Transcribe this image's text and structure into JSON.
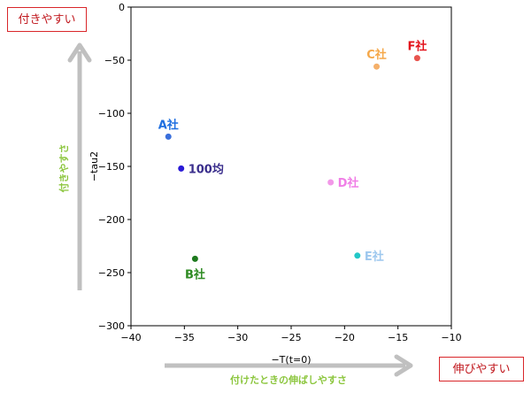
{
  "chart_data": {
    "type": "scatter",
    "xlabel": "−T(t=0)",
    "ylabel": "−tau2",
    "xlim": [
      -40,
      -10
    ],
    "ylim": [
      -300,
      0
    ],
    "xticks": [
      -40,
      -35,
      -30,
      -25,
      -20,
      -15,
      -10
    ],
    "yticks": [
      0,
      -50,
      -100,
      -150,
      -200,
      -250,
      -300
    ],
    "xtick_labels": [
      "−40",
      "−35",
      "−30",
      "−25",
      "−20",
      "−15",
      "−10"
    ],
    "ytick_labels": [
      "0",
      "−50",
      "−100",
      "−150",
      "−200",
      "−250",
      "−300"
    ],
    "grid": false,
    "points": [
      {
        "label": "A社",
        "x": -36.5,
        "y": -122,
        "color": "#3a6fdc",
        "label_color": "#1f6fe0",
        "label_pos": "above"
      },
      {
        "label": "100均",
        "x": -35.3,
        "y": -152,
        "color": "#2a1ad6",
        "label_color": "#3a2e8c",
        "label_pos": "right"
      },
      {
        "label": "B社",
        "x": -34.0,
        "y": -237,
        "color": "#1e7a1e",
        "label_color": "#2e8b22",
        "label_pos": "below"
      },
      {
        "label": "C社",
        "x": -17.0,
        "y": -56,
        "color": "#f5b06a",
        "label_color": "#f5a84a",
        "label_pos": "above"
      },
      {
        "label": "D社",
        "x": -21.3,
        "y": -165,
        "color": "#f298e8",
        "label_color": "#f07ee6",
        "label_pos": "right"
      },
      {
        "label": "E社",
        "x": -18.8,
        "y": -234,
        "color": "#22c7c7",
        "label_color": "#9ec8ee",
        "label_pos": "right"
      },
      {
        "label": "F社",
        "x": -13.2,
        "y": -48,
        "color": "#e8544e",
        "label_color": "#e3121b",
        "label_pos": "above"
      }
    ],
    "annotations": {
      "top_left_box": "付きやすい",
      "bottom_right_box": "伸びやすい",
      "vertical_arrow_text": "付きやすさ",
      "horizontal_arrow_text": "付けたときの伸ばしやすさ",
      "arrow_color": "#c0c0c0",
      "arrow_text_color": "#8cc63e",
      "box_text_color": "#c0171d"
    }
  }
}
